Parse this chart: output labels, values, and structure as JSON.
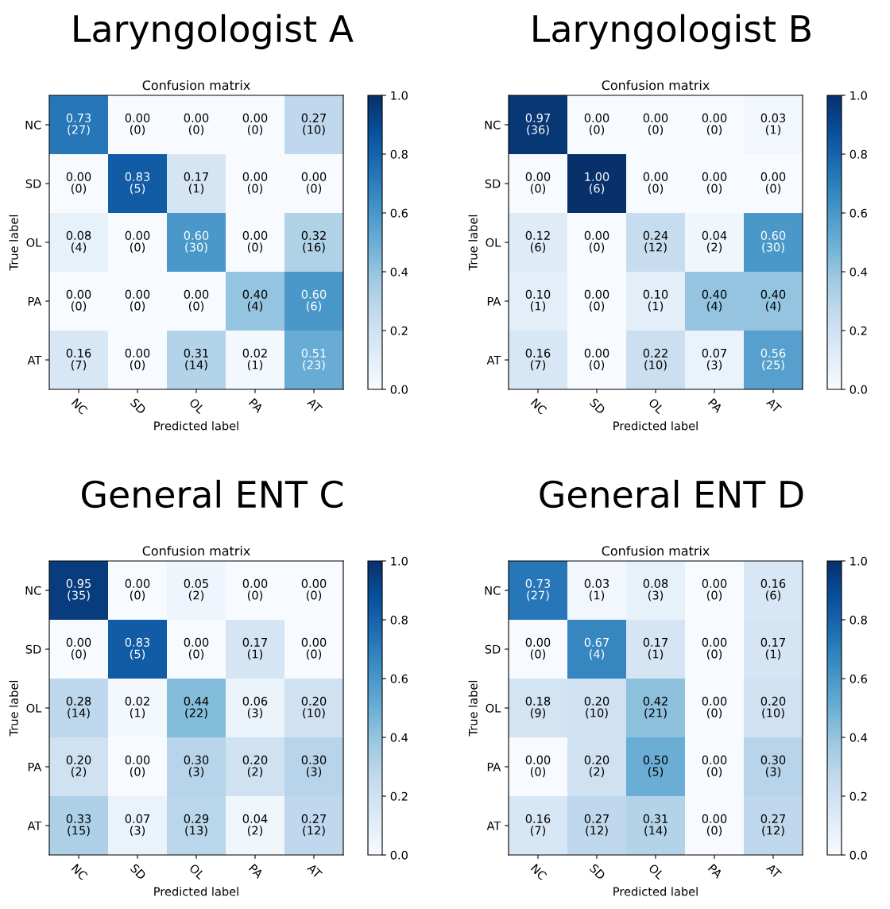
{
  "chart_data": [
    {
      "type": "heatmap",
      "title": "Laryngologist A",
      "subtitle": "Confusion matrix",
      "xlabel": "Predicted label",
      "ylabel": "True label",
      "categories": [
        "NC",
        "SD",
        "OL",
        "PA",
        "AT"
      ],
      "y_categories": [
        "NC",
        "SD",
        "OL",
        "PA",
        "AT"
      ],
      "cells": [
        [
          0.73,
          0.0,
          0.0,
          0.0,
          0.27
        ],
        [
          0.0,
          0.83,
          0.17,
          0.0,
          0.0
        ],
        [
          0.08,
          0.0,
          0.6,
          0.0,
          0.32
        ],
        [
          0.0,
          0.0,
          0.0,
          0.4,
          0.6
        ],
        [
          0.16,
          0.0,
          0.31,
          0.02,
          0.51
        ]
      ],
      "cell_labels": [
        [
          "0.73\n(27)",
          "0.00\n(0)",
          "0.00\n(0)",
          "0.00\n(0)",
          "0.27\n(10)"
        ],
        [
          "0.00\n(0)",
          "0.83\n(5)",
          "0.17\n(1)",
          "0.00\n(0)",
          "0.00\n(0)"
        ],
        [
          "0.08\n(4)",
          "0.00\n(0)",
          "0.60\n(30)",
          "0.00\n(0)",
          "0.32\n(16)"
        ],
        [
          "0.00\n(0)",
          "0.00\n(0)",
          "0.00\n(0)",
          "0.40\n(4)",
          "0.60\n(6)"
        ],
        [
          "0.16\n(7)",
          "0.00\n(0)",
          "0.31\n(14)",
          "0.02\n(1)",
          "0.51\n(23)"
        ]
      ],
      "clim": [
        0,
        1
      ],
      "cticks": [
        {
          "value": 0,
          "label": "0.0"
        },
        {
          "value": 0.2,
          "label": "0.2"
        },
        {
          "value": 0.4,
          "label": "0.4"
        },
        {
          "value": 0.6,
          "label": "0.6"
        },
        {
          "value": 0.8,
          "label": "0.8"
        },
        {
          "value": 1,
          "label": "1.0"
        }
      ]
    },
    {
      "type": "heatmap",
      "title": "Laryngologist B",
      "subtitle": "Confusion matrix",
      "xlabel": "Predicted label",
      "ylabel": "True label",
      "categories": [
        "NC",
        "SD",
        "OL",
        "PA",
        "AT"
      ],
      "y_categories": [
        "NC",
        "SD",
        "OL",
        "PA",
        "AT"
      ],
      "cells": [
        [
          0.97,
          0.0,
          0.0,
          0.0,
          0.03
        ],
        [
          0.0,
          1.0,
          0.0,
          0.0,
          0.0
        ],
        [
          0.12,
          0.0,
          0.24,
          0.04,
          0.6
        ],
        [
          0.1,
          0.0,
          0.1,
          0.4,
          0.4
        ],
        [
          0.16,
          0.0,
          0.22,
          0.07,
          0.56
        ]
      ],
      "cell_labels": [
        [
          "0.97\n(36)",
          "0.00\n(0)",
          "0.00\n(0)",
          "0.00\n(0)",
          "0.03\n(1)"
        ],
        [
          "0.00\n(0)",
          "1.00\n(6)",
          "0.00\n(0)",
          "0.00\n(0)",
          "0.00\n(0)"
        ],
        [
          "0.12\n(6)",
          "0.00\n(0)",
          "0.24\n(12)",
          "0.04\n(2)",
          "0.60\n(30)"
        ],
        [
          "0.10\n(1)",
          "0.00\n(0)",
          "0.10\n(1)",
          "0.40\n(4)",
          "0.40\n(4)"
        ],
        [
          "0.16\n(7)",
          "0.00\n(0)",
          "0.22\n(10)",
          "0.07\n(3)",
          "0.56\n(25)"
        ]
      ],
      "clim": [
        0,
        1
      ],
      "cticks": [
        {
          "value": 0,
          "label": "0.0"
        },
        {
          "value": 0.2,
          "label": "0.2"
        },
        {
          "value": 0.4,
          "label": "0.4"
        },
        {
          "value": 0.6,
          "label": "0.6"
        },
        {
          "value": 0.8,
          "label": "0.8"
        },
        {
          "value": 1,
          "label": "1.0"
        }
      ]
    },
    {
      "type": "heatmap",
      "title": "General ENT C",
      "subtitle": "Confusion matrix",
      "xlabel": "Predicted label",
      "ylabel": "True label",
      "categories": [
        "NC",
        "SD",
        "OL",
        "PA",
        "AT"
      ],
      "y_categories": [
        "NC",
        "SD",
        "OL",
        "PA",
        "AT"
      ],
      "cells": [
        [
          0.95,
          0.0,
          0.05,
          0.0,
          0.0
        ],
        [
          0.0,
          0.83,
          0.0,
          0.17,
          0.0
        ],
        [
          0.28,
          0.02,
          0.44,
          0.06,
          0.2
        ],
        [
          0.2,
          0.0,
          0.3,
          0.2,
          0.3
        ],
        [
          0.33,
          0.07,
          0.29,
          0.04,
          0.27
        ]
      ],
      "cell_labels": [
        [
          "0.95\n(35)",
          "0.00\n(0)",
          "0.05\n(2)",
          "0.00\n(0)",
          "0.00\n(0)"
        ],
        [
          "0.00\n(0)",
          "0.83\n(5)",
          "0.00\n(0)",
          "0.17\n(1)",
          "0.00\n(0)"
        ],
        [
          "0.28\n(14)",
          "0.02\n(1)",
          "0.44\n(22)",
          "0.06\n(3)",
          "0.20\n(10)"
        ],
        [
          "0.20\n(2)",
          "0.00\n(0)",
          "0.30\n(3)",
          "0.20\n(2)",
          "0.30\n(3)"
        ],
        [
          "0.33\n(15)",
          "0.07\n(3)",
          "0.29\n(13)",
          "0.04\n(2)",
          "0.27\n(12)"
        ]
      ],
      "clim": [
        0,
        1
      ],
      "cticks": [
        {
          "value": 0,
          "label": "0.0"
        },
        {
          "value": 0.2,
          "label": "0.2"
        },
        {
          "value": 0.4,
          "label": "0.4"
        },
        {
          "value": 0.6,
          "label": "0.6"
        },
        {
          "value": 0.8,
          "label": "0.8"
        },
        {
          "value": 1,
          "label": "1.0"
        }
      ]
    },
    {
      "type": "heatmap",
      "title": "General ENT D",
      "subtitle": "Confusion matrix",
      "xlabel": "Predicted label",
      "ylabel": "True label",
      "categories": [
        "NC",
        "SD",
        "OL",
        "PA",
        "AT"
      ],
      "y_categories": [
        "NC",
        "SD",
        "OL",
        "PA",
        "AT"
      ],
      "cells": [
        [
          0.73,
          0.03,
          0.08,
          0.0,
          0.16
        ],
        [
          0.0,
          0.67,
          0.17,
          0.0,
          0.17
        ],
        [
          0.18,
          0.2,
          0.42,
          0.0,
          0.2
        ],
        [
          0.0,
          0.2,
          0.5,
          0.0,
          0.3
        ],
        [
          0.16,
          0.27,
          0.31,
          0.0,
          0.27
        ]
      ],
      "cell_labels": [
        [
          "0.73\n(27)",
          "0.03\n(1)",
          "0.08\n(3)",
          "0.00\n(0)",
          "0.16\n(6)"
        ],
        [
          "0.00\n(0)",
          "0.67\n(4)",
          "0.17\n(1)",
          "0.00\n(0)",
          "0.17\n(1)"
        ],
        [
          "0.18\n(9)",
          "0.20\n(10)",
          "0.42\n(21)",
          "0.00\n(0)",
          "0.20\n(10)"
        ],
        [
          "0.00\n(0)",
          "0.20\n(2)",
          "0.50\n(5)",
          "0.00\n(0)",
          "0.30\n(3)"
        ],
        [
          "0.16\n(7)",
          "0.27\n(12)",
          "0.31\n(14)",
          "0.00\n(0)",
          "0.27\n(12)"
        ]
      ],
      "clim": [
        0,
        1
      ],
      "cticks": [
        {
          "value": 0,
          "label": "0.0"
        },
        {
          "value": 0.2,
          "label": "0.2"
        },
        {
          "value": 0.4,
          "label": "0.4"
        },
        {
          "value": 0.6,
          "label": "0.6"
        },
        {
          "value": 0.8,
          "label": "0.8"
        },
        {
          "value": 1,
          "label": "1.0"
        }
      ]
    }
  ]
}
